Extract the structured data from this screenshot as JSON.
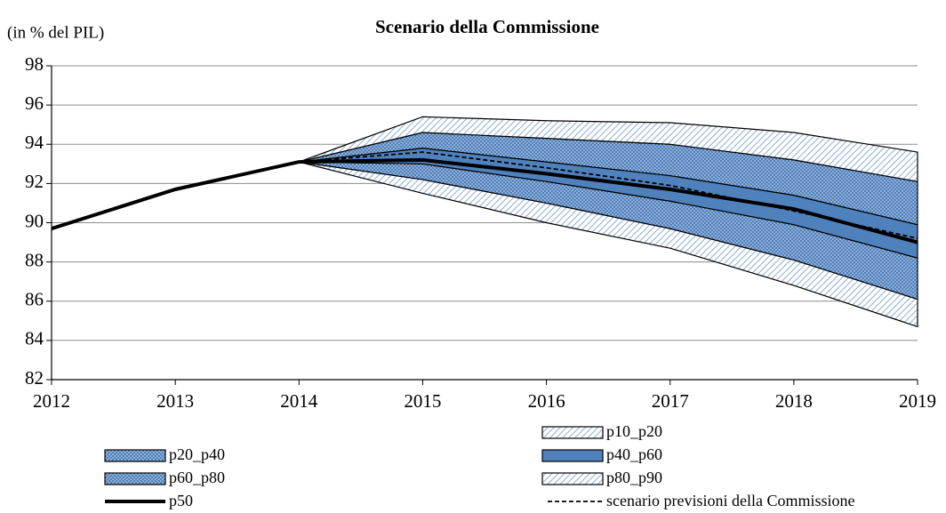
{
  "chart_data": {
    "type": "fan",
    "title": "Scenario della Commissione",
    "y_label": "(in % del PIL)",
    "x": [
      2012,
      2013,
      2014,
      2015,
      2016,
      2017,
      2018,
      2019
    ],
    "xlim": [
      2012,
      2019
    ],
    "xticks": [
      2012,
      2013,
      2014,
      2015,
      2016,
      2017,
      2018,
      2019
    ],
    "ylim": [
      82,
      98
    ],
    "yticks": [
      82,
      84,
      86,
      88,
      90,
      92,
      94,
      96,
      98
    ],
    "grid": true,
    "series": [
      {
        "name": "p10_p20",
        "color": "#95b3d7",
        "pattern": "hatch",
        "low": [
          null,
          null,
          93.1,
          91.5,
          90.0,
          88.7,
          86.8,
          84.7
        ],
        "high": [
          null,
          null,
          93.1,
          92.2,
          91.0,
          89.7,
          88.1,
          86.1
        ]
      },
      {
        "name": "p20_p40",
        "color": "#4f81bd",
        "pattern": "dots",
        "low": [
          null,
          null,
          93.1,
          92.2,
          91.0,
          89.7,
          88.1,
          86.1
        ],
        "high": [
          null,
          null,
          93.1,
          93.0,
          92.1,
          91.1,
          89.9,
          88.2
        ]
      },
      {
        "name": "p40_p60",
        "color": "#4f81bd",
        "pattern": "solid",
        "low": [
          null,
          null,
          93.1,
          93.0,
          92.1,
          91.1,
          89.9,
          88.2
        ],
        "high": [
          null,
          null,
          93.1,
          93.8,
          93.1,
          92.4,
          91.4,
          89.9
        ]
      },
      {
        "name": "p60_p80",
        "color": "#4f81bd",
        "pattern": "dots",
        "low": [
          null,
          null,
          93.1,
          93.8,
          93.1,
          92.4,
          91.4,
          89.9
        ],
        "high": [
          null,
          null,
          93.1,
          94.6,
          94.3,
          94.0,
          93.2,
          92.1
        ]
      },
      {
        "name": "p80_p90",
        "color": "#95b3d7",
        "pattern": "hatch",
        "low": [
          null,
          null,
          93.1,
          94.6,
          94.3,
          94.0,
          93.2,
          92.1
        ],
        "high": [
          null,
          null,
          93.1,
          95.4,
          95.2,
          95.1,
          94.6,
          93.6
        ]
      },
      {
        "name": "p50",
        "color": "#000000",
        "dash": false,
        "values": [
          89.7,
          91.7,
          93.1,
          93.2,
          92.5,
          91.7,
          90.7,
          89.0
        ]
      },
      {
        "name": "scenario previsioni della Commissione",
        "color": "#000000",
        "dash": true,
        "values": [
          null,
          null,
          93.1,
          93.6,
          92.8,
          91.9,
          90.6,
          89.2
        ]
      }
    ]
  }
}
